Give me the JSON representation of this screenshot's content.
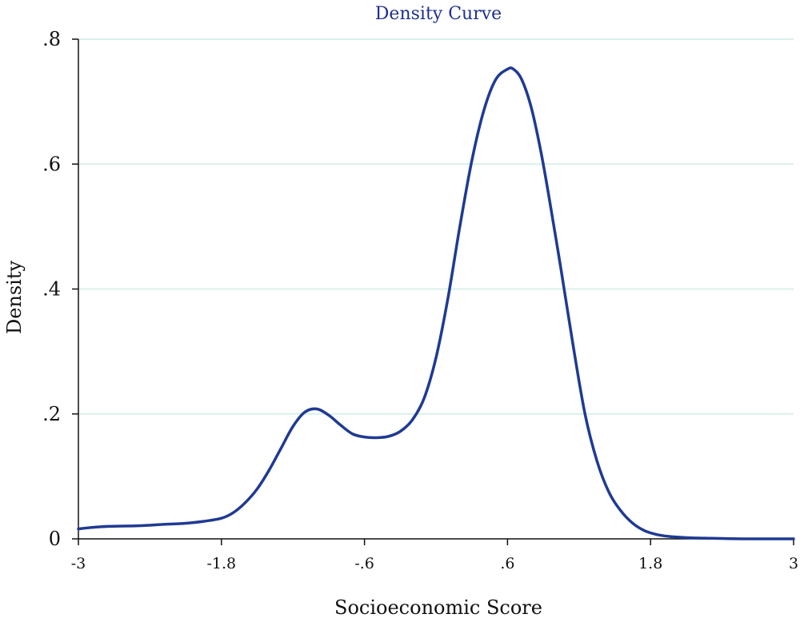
{
  "chart_data": {
    "type": "line",
    "title": "Density Curve",
    "xlabel": "Socioeconomic Score",
    "ylabel": "Density",
    "xlim": [
      -3,
      3
    ],
    "ylim": [
      0,
      0.8
    ],
    "x_ticks": [
      -3,
      -1.8,
      -0.6,
      0.6,
      1.8,
      3
    ],
    "x_tick_labels": [
      "-3",
      "-1.8",
      "-.6",
      ".6",
      "1.8",
      "3"
    ],
    "y_ticks": [
      0,
      0.2,
      0.4,
      0.6,
      0.8
    ],
    "y_tick_labels": [
      "0",
      ".2",
      ".4",
      ".6",
      ".8"
    ],
    "grid": "horizontal",
    "series": [
      {
        "color": "#1f3a93",
        "x": [
          -3.0,
          -2.9,
          -2.75,
          -2.5,
          -2.3,
          -2.1,
          -1.95,
          -1.8,
          -1.7,
          -1.6,
          -1.5,
          -1.4,
          -1.3,
          -1.2,
          -1.1,
          -1.0,
          -0.9,
          -0.8,
          -0.7,
          -0.6,
          -0.5,
          -0.4,
          -0.3,
          -0.2,
          -0.1,
          0.0,
          0.1,
          0.2,
          0.3,
          0.4,
          0.5,
          0.6,
          0.65,
          0.72,
          0.8,
          0.88,
          0.95,
          1.05,
          1.15,
          1.25,
          1.35,
          1.45,
          1.55,
          1.65,
          1.75,
          1.85,
          1.95,
          2.1,
          2.3,
          2.6,
          3.0
        ],
        "y": [
          0.016,
          0.018,
          0.02,
          0.021,
          0.023,
          0.025,
          0.028,
          0.033,
          0.042,
          0.058,
          0.08,
          0.11,
          0.145,
          0.18,
          0.203,
          0.208,
          0.198,
          0.182,
          0.168,
          0.163,
          0.162,
          0.164,
          0.172,
          0.19,
          0.225,
          0.29,
          0.385,
          0.5,
          0.605,
          0.685,
          0.735,
          0.752,
          0.752,
          0.735,
          0.69,
          0.62,
          0.545,
          0.43,
          0.31,
          0.2,
          0.125,
          0.075,
          0.045,
          0.025,
          0.013,
          0.007,
          0.004,
          0.002,
          0.001,
          0.0,
          0.0
        ]
      }
    ]
  }
}
